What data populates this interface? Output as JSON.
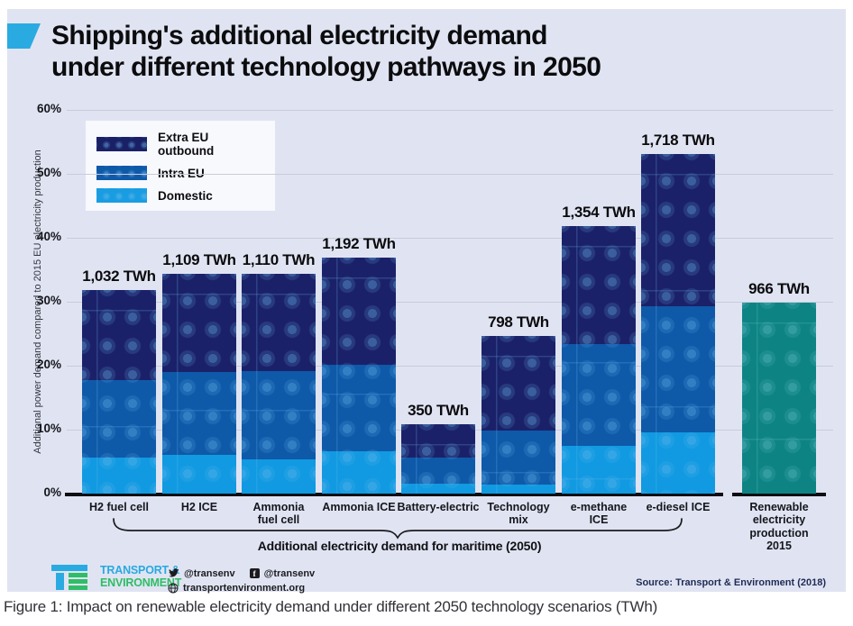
{
  "header": {
    "title_line1": "Shipping's additional electricity demand",
    "title_line2": "under different technology pathways in 2050"
  },
  "legend": {
    "items": [
      {
        "label": "Extra EU outbound"
      },
      {
        "label": "Intra EU"
      },
      {
        "label": "Domestic"
      }
    ]
  },
  "chart_data": {
    "type": "bar",
    "stacked": true,
    "title": "Shipping's additional electricity demand under different technology pathways in 2050",
    "ylabel": "Additional power demand compared to 2015 EU electricity production",
    "ylim": [
      0,
      60
    ],
    "ytick_labels": [
      "0%",
      "10%",
      "20%",
      "30%",
      "40%",
      "50%",
      "60%"
    ],
    "grid": "horizontal",
    "legend_position": "top-left",
    "series_names": [
      "Domestic",
      "Intra EU",
      "Extra EU outbound"
    ],
    "bars": [
      {
        "category_lines": [
          "H2 fuel cell"
        ],
        "value_label": "1,032 TWh",
        "total_twh": 1032,
        "segments_pct": {
          "domestic": 5.6,
          "intra_eu": 12.1,
          "extra_eu": 14.2
        }
      },
      {
        "category_lines": [
          "H2 ICE"
        ],
        "value_label": "1,109 TWh",
        "total_twh": 1109,
        "segments_pct": {
          "domestic": 6.0,
          "intra_eu": 13.0,
          "extra_eu": 15.3
        }
      },
      {
        "category_lines": [
          "Ammonia",
          "fuel cell"
        ],
        "value_label": "1,110 TWh",
        "total_twh": 1110,
        "segments_pct": {
          "domestic": 5.3,
          "intra_eu": 13.8,
          "extra_eu": 15.2
        }
      },
      {
        "category_lines": [
          "Ammonia ICE"
        ],
        "value_label": "1,192 TWh",
        "total_twh": 1192,
        "segments_pct": {
          "domestic": 6.6,
          "intra_eu": 13.6,
          "extra_eu": 16.7
        }
      },
      {
        "category_lines": [
          "Battery-electric"
        ],
        "value_label": "350 TWh",
        "total_twh": 350,
        "segments_pct": {
          "domestic": 1.5,
          "intra_eu": 4.1,
          "extra_eu": 5.2
        }
      },
      {
        "category_lines": [
          "Technology",
          "mix"
        ],
        "value_label": "798 TWh",
        "total_twh": 798,
        "segments_pct": {
          "domestic": 1.4,
          "intra_eu": 8.5,
          "extra_eu": 14.8
        }
      },
      {
        "category_lines": [
          "e-methane",
          "ICE"
        ],
        "value_label": "1,354 TWh",
        "total_twh": 1354,
        "segments_pct": {
          "domestic": 7.5,
          "intra_eu": 15.9,
          "extra_eu": 18.5
        }
      },
      {
        "category_lines": [
          "e-diesel ICE"
        ],
        "value_label": "1,718 TWh",
        "total_twh": 1718,
        "segments_pct": {
          "domestic": 9.6,
          "intra_eu": 19.7,
          "extra_eu": 23.8
        }
      }
    ],
    "reference_bar": {
      "category_lines": [
        "Renewable",
        "electricity",
        "production",
        "2015"
      ],
      "value_label": "966 TWh",
      "total_twh": 966,
      "pct": 29.9
    },
    "group_bracket_label": "Additional electricity demand for maritime (2050)",
    "colors": {
      "extra_eu": "#1b2169",
      "intra_eu": "#0f59a9",
      "domestic": "#119ae1",
      "reference": "#0e8383",
      "background": "#e0e4f2",
      "gridline": "#c7ccdb",
      "axis": "#0e0e13"
    }
  },
  "footer": {
    "logo_line1": "TRANSPORT &",
    "logo_line2": "ENVIRONMENT",
    "twitter_handle": "@transenv",
    "facebook_handle": "@transenv",
    "website": "transportenvironment.org",
    "source": "Source: Transport & Environment (2018)"
  },
  "caption": "Figure 1:  Impact on renewable electricity demand under different 2050 technology scenarios (TWh)"
}
